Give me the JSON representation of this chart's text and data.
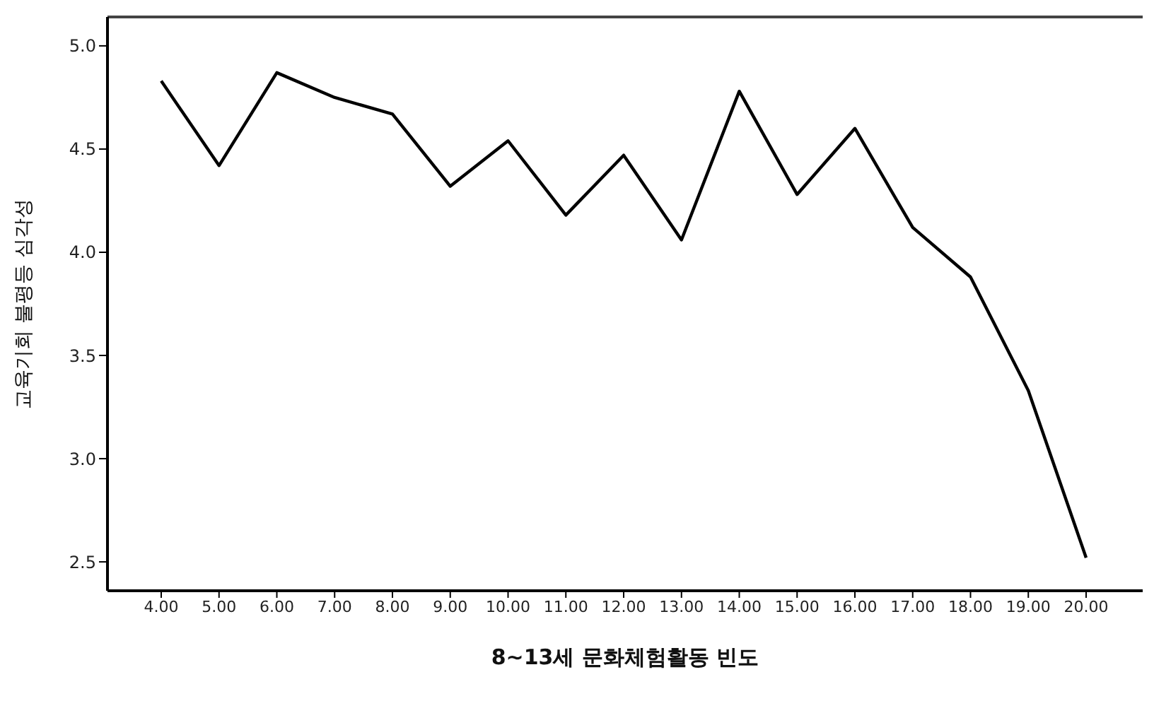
{
  "chart_data": {
    "type": "line",
    "xlabel": "8~13세 문화체험활동 빈도",
    "ylabel": "교육기회 불평등 심각성",
    "categories": [
      "4.00",
      "5.00",
      "6.00",
      "7.00",
      "8.00",
      "9.00",
      "10.00",
      "11.00",
      "12.00",
      "13.00",
      "14.00",
      "15.00",
      "16.00",
      "17.00",
      "18.00",
      "19.00",
      "20.00"
    ],
    "series": [
      {
        "color": "#000000",
        "values": [
          4.83,
          4.42,
          4.87,
          4.75,
          4.67,
          4.32,
          4.54,
          4.18,
          4.47,
          4.06,
          4.78,
          4.28,
          4.6,
          4.12,
          3.88,
          3.33,
          2.52
        ]
      }
    ],
    "ylim": [
      2.36,
      5.14
    ],
    "yticks": [
      2.5,
      {
        "value": 3,
        "label": "3.0"
      },
      3.5,
      {
        "value": 4,
        "label": "4.0"
      },
      4.5,
      {
        "value": 5,
        "label": "5.0"
      }
    ],
    "marker": "none",
    "line_style": "solid"
  }
}
